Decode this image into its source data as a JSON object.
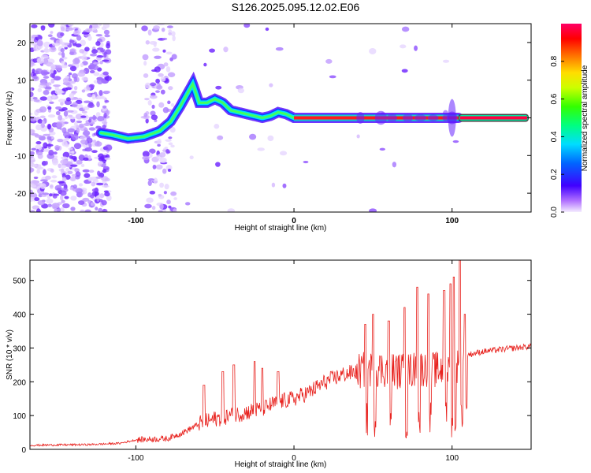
{
  "title": "S126.2025.095.12.02.E06",
  "colors": {
    "snr_line": "#e8221e",
    "trace": "#ff0000",
    "background": "#ffffff"
  },
  "chart_data": [
    {
      "type": "heatmap",
      "xlabel": "Height of straight line (km)",
      "ylabel": "Frequency (Hz)",
      "xlim": [
        -167,
        150
      ],
      "ylim": [
        -25,
        25
      ],
      "x_ticks": [
        {
          "value": -100,
          "label": "-100"
        },
        {
          "value": 0,
          "label": "0"
        },
        {
          "value": 100,
          "label": "100"
        }
      ],
      "y_ticks": [
        {
          "value": 20,
          "label": "20"
        },
        {
          "value": 10,
          "label": "10"
        },
        {
          "value": 0,
          "label": "0"
        },
        {
          "value": -10,
          "label": "-10"
        },
        {
          "value": -20,
          "label": "-20"
        }
      ],
      "colorbar": {
        "label": "Normalized spectral amplitude",
        "range": [
          0,
          1
        ],
        "ticks": [
          {
            "value": 0.0,
            "label": "0.0"
          },
          {
            "value": 0.2,
            "label": "0.2"
          },
          {
            "value": 0.4,
            "label": "0.4"
          },
          {
            "value": 0.6,
            "label": "0.6"
          },
          {
            "value": 0.8,
            "label": "0.8"
          }
        ],
        "colormap": "rainbow (purple-blue-cyan-green-yellow-red-magenta)"
      },
      "frequency_trace": {
        "x": [
          -122,
          -115,
          -105,
          -95,
          -85,
          -78,
          -72,
          -68,
          -64,
          -60,
          -55,
          -50,
          -45,
          -40,
          -35,
          -30,
          -25,
          -20,
          -15,
          -10,
          -5,
          0,
          20,
          40,
          60,
          80,
          90,
          95,
          100,
          105,
          150
        ],
        "y": [
          -4,
          -4.5,
          -5.5,
          -5,
          -3.5,
          -1,
          3,
          6,
          9,
          4,
          4,
          5,
          4,
          2,
          1.5,
          1,
          0.5,
          0,
          0.5,
          1.5,
          1,
          0,
          0,
          0,
          0,
          0,
          0,
          0,
          0,
          0,
          0
        ]
      }
    },
    {
      "type": "line",
      "xlabel": "Height of straight line (km)",
      "ylabel": "SNR (10 * v/v)",
      "xlim": [
        -167,
        150
      ],
      "ylim": [
        0,
        560
      ],
      "x_ticks": [
        {
          "value": -100,
          "label": "-100"
        },
        {
          "value": 0,
          "label": "0"
        },
        {
          "value": 100,
          "label": "100"
        }
      ],
      "y_ticks": [
        {
          "value": 0,
          "label": "0"
        },
        {
          "value": 100,
          "label": "100"
        },
        {
          "value": 200,
          "label": "200"
        },
        {
          "value": 300,
          "label": "300"
        },
        {
          "value": 400,
          "label": "400"
        },
        {
          "value": 500,
          "label": "500"
        }
      ],
      "series": [
        {
          "x": [
            -167,
            -150,
            -130,
            -110,
            -100,
            -90,
            -80,
            -70,
            -60,
            -50,
            -40,
            -30,
            -20,
            -10,
            0,
            10,
            20,
            30,
            40,
            50,
            60,
            70,
            80,
            90,
            100,
            105,
            110,
            120,
            130,
            140,
            150
          ],
          "y": [
            12,
            13,
            14,
            18,
            28,
            30,
            32,
            50,
            75,
            90,
            100,
            110,
            120,
            140,
            150,
            170,
            200,
            220,
            230,
            240,
            235,
            230,
            240,
            235,
            240,
            250,
            280,
            290,
            295,
            300,
            305
          ]
        }
      ]
    }
  ]
}
